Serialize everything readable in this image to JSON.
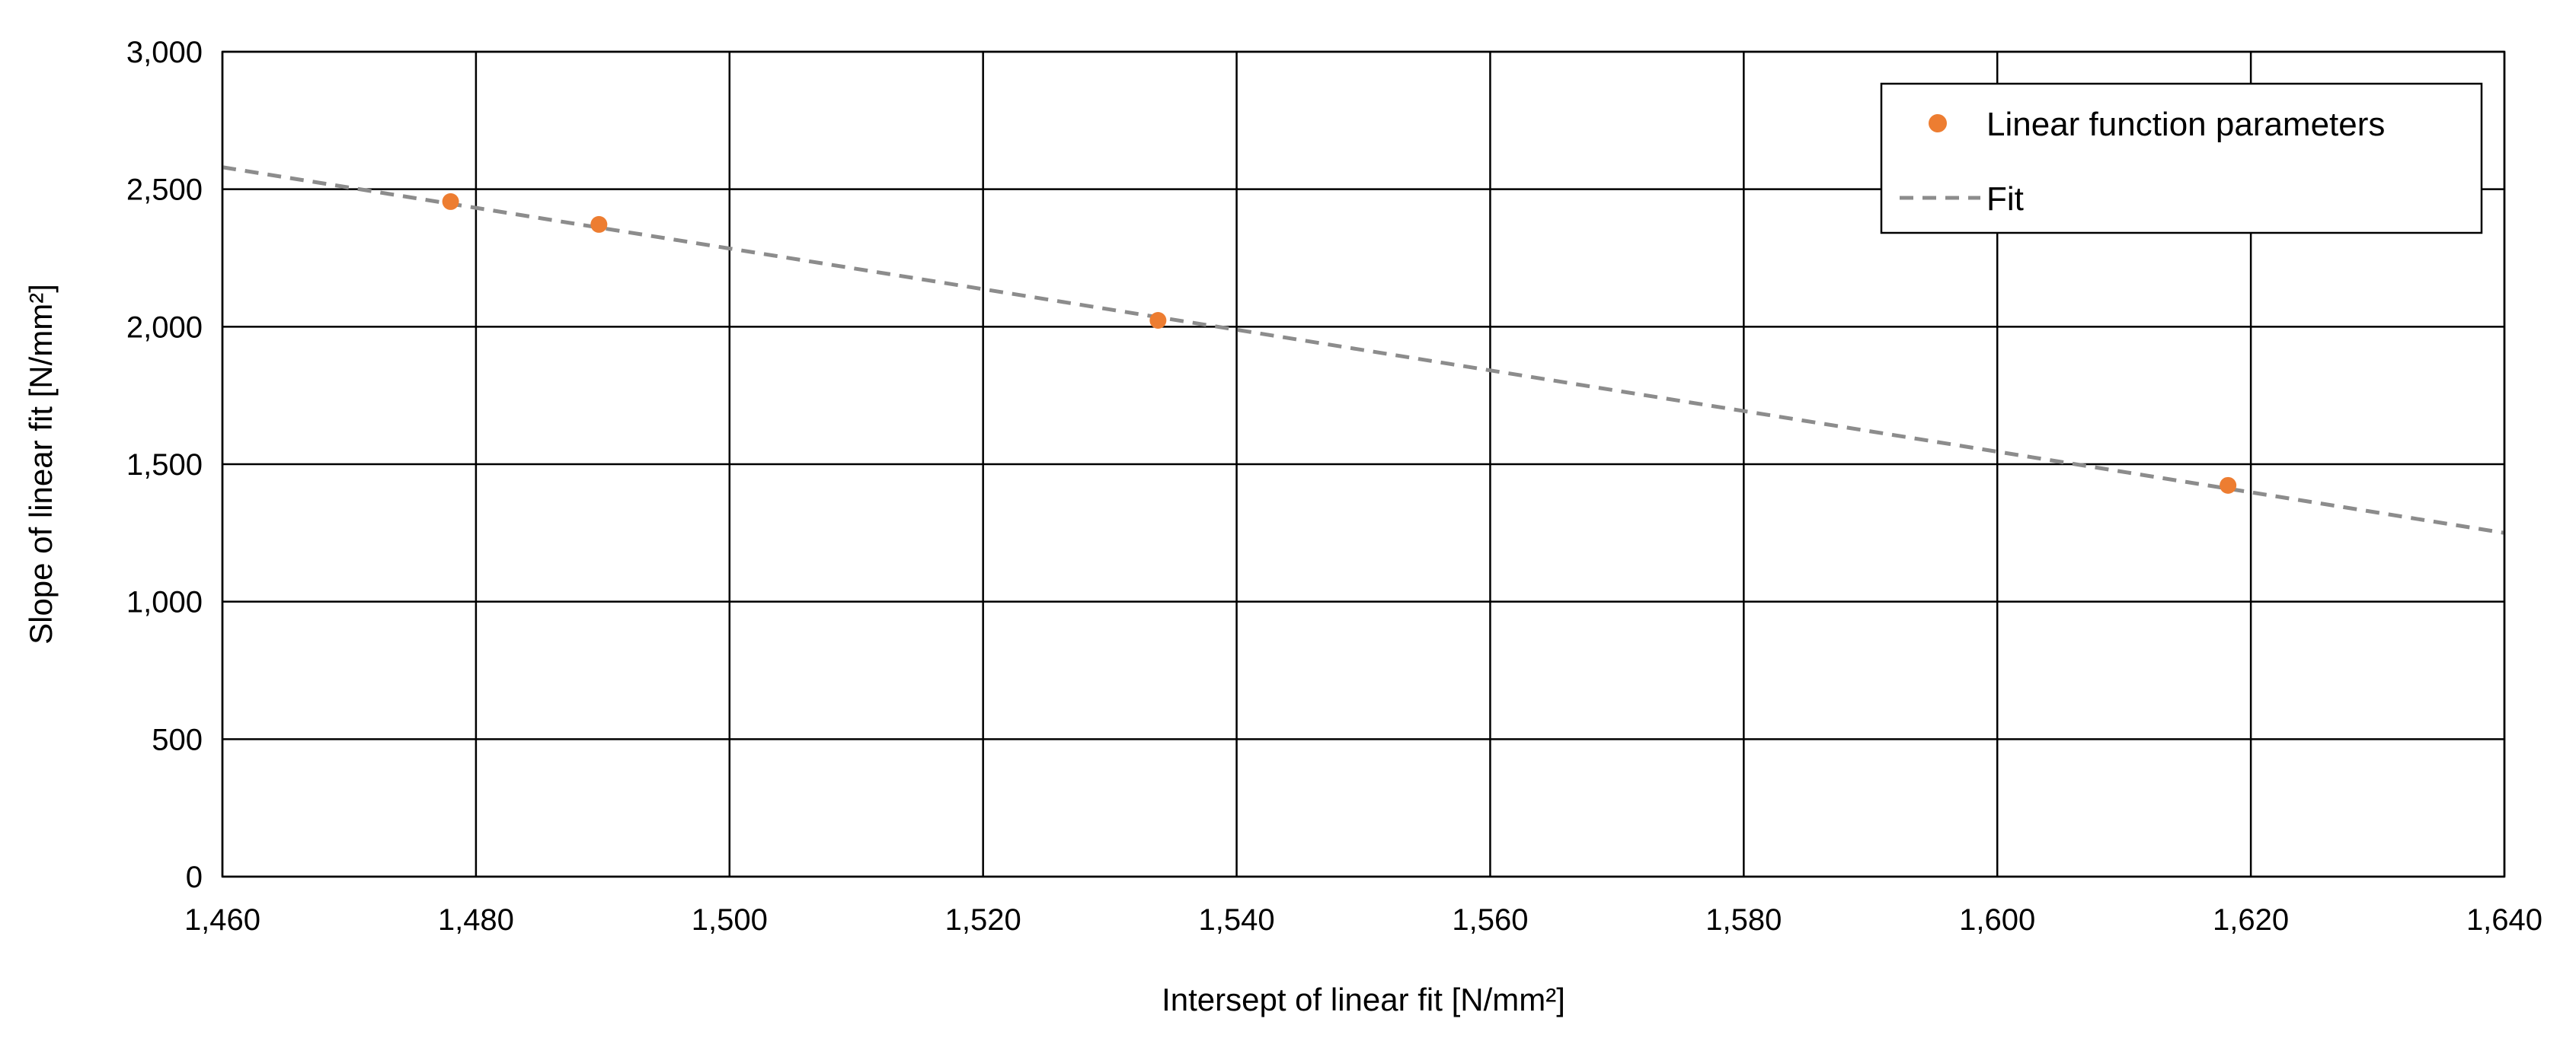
{
  "chart_data": {
    "type": "scatter",
    "xlabel": "Intersept of linear fit   [N/mm²]",
    "ylabel": "Slope of linear fit   [N/mm²]",
    "xlim": [
      1460,
      1640
    ],
    "ylim": [
      0,
      3000
    ],
    "xticks": [
      1460,
      1480,
      1500,
      1520,
      1540,
      1560,
      1580,
      1600,
      1620,
      1640
    ],
    "yticks": [
      0,
      500,
      1000,
      1500,
      2000,
      2500,
      3000
    ],
    "xtick_labels": [
      "1,460",
      "1,480",
      "1,500",
      "1,520",
      "1,540",
      "1,560",
      "1,580",
      "1,600",
      "1,620",
      "1,640"
    ],
    "ytick_labels": [
      "0",
      "500",
      "1,000",
      "1,500",
      "2,000",
      "2,500",
      "3,000"
    ],
    "grid": true,
    "legend_position": "top-right",
    "series": [
      {
        "name": "Linear function parameters",
        "kind": "scatter",
        "color": "#ED7D31",
        "points": [
          {
            "x": 1478,
            "y": 2455
          },
          {
            "x": 1489.7,
            "y": 2372
          },
          {
            "x": 1533.8,
            "y": 2023
          },
          {
            "x": 1618.2,
            "y": 1423
          }
        ]
      },
      {
        "name": "Fit",
        "kind": "line",
        "color": "#8C8C8C",
        "dash": "dashed",
        "points": [
          {
            "x": 1460,
            "y": 2580
          },
          {
            "x": 1640,
            "y": 1250
          }
        ]
      }
    ]
  }
}
